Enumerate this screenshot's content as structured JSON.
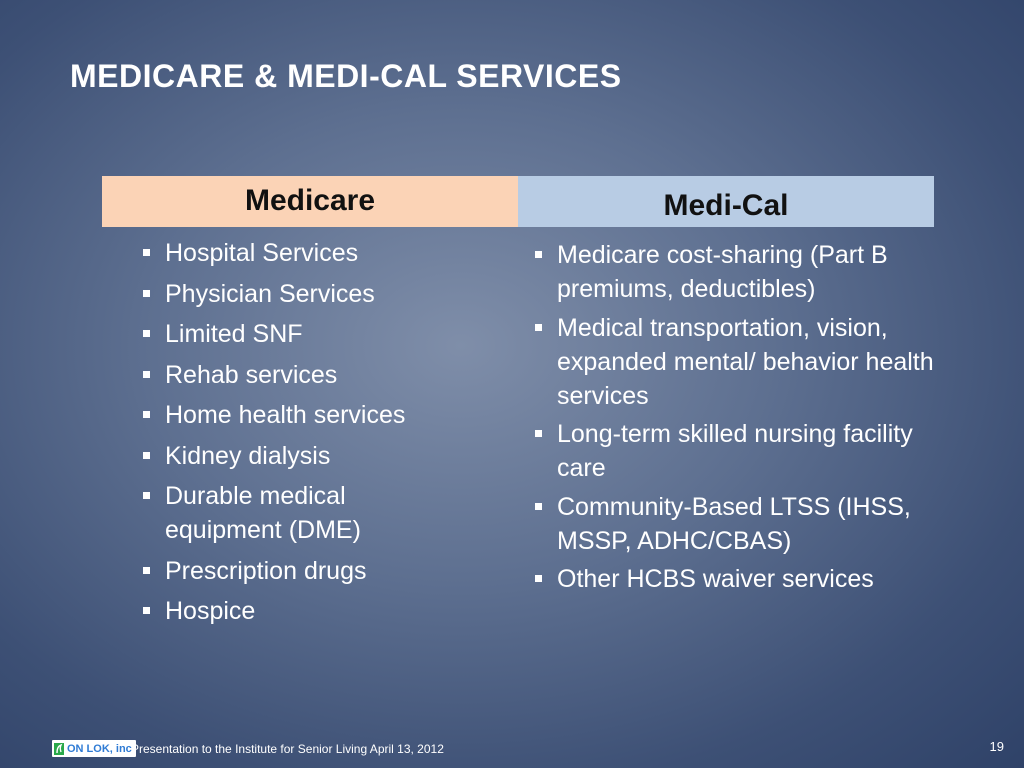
{
  "slide": {
    "title": "MEDICARE & MEDI-CAL SERVICES",
    "page_number": "19"
  },
  "columns": {
    "medicare": {
      "header": "Medicare",
      "header_color": "#fbd3b6",
      "items": [
        "Hospital Services",
        "Physician Services",
        "Limited SNF",
        "Rehab services",
        "Home health services",
        "Kidney dialysis",
        "Durable medical equipment (DME)",
        "Prescription drugs",
        "Hospice"
      ]
    },
    "medical": {
      "header": "Medi-Cal",
      "header_color": "#b8cce4",
      "items": [
        "Medicare cost-sharing (Part B premiums, deductibles)",
        "Medical transportation, vision, expanded mental/ behavior health services",
        "Long-term skilled nursing facility care",
        "Community-Based  LTSS (IHSS, MSSP, ADHC/CBAS)",
        "Other HCBS waiver services"
      ]
    }
  },
  "footer": {
    "logo_text": "ON LOK, inc",
    "logo_icon": "on-lok-logo-icon",
    "presentation_text": "Presentation to the  Institute for Senior Living April 13, 2012"
  }
}
